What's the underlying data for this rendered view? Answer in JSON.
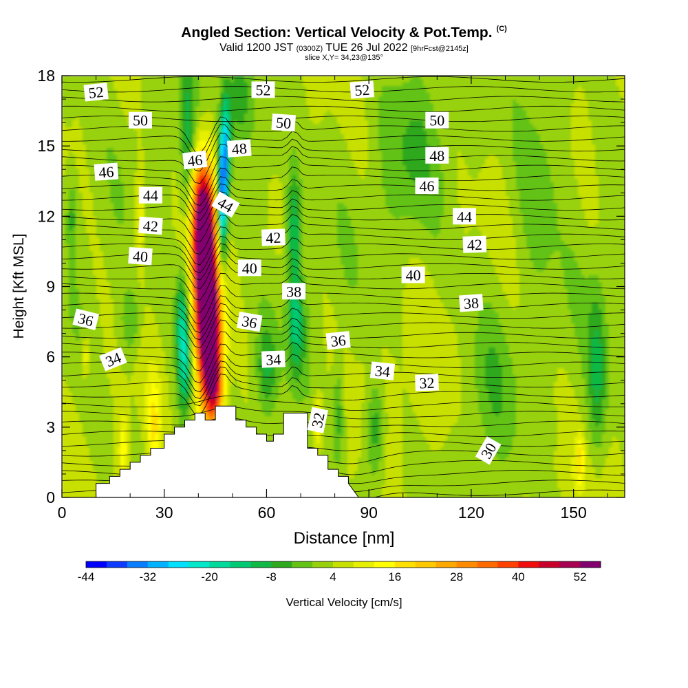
{
  "chart_data": {
    "type": "heatmap",
    "title": {
      "main": "Angled Section: Vertical Velocity & Pot.Temp.",
      "main_units": "(C)",
      "valid_prefix": "Valid 1200 JST",
      "valid_utc": "(0300Z)",
      "valid_date": "TUE 26 Jul 2022",
      "forecast": "[9hrFcst@2145z]",
      "slice": "slice X,Y= 34,23@135°"
    },
    "xlabel": "Distance [nm]",
    "ylabel": "Height [Kft MSL]",
    "xlim": [
      0,
      165
    ],
    "ylim": [
      0,
      18
    ],
    "xticks": [
      "0",
      "30",
      "60",
      "90",
      "120",
      "150"
    ],
    "yticks": [
      "0",
      "3",
      "6",
      "9",
      "12",
      "15",
      "18"
    ],
    "colorbar": {
      "label": "Vertical Velocity [cm/s]",
      "tick_labels": [
        "-44",
        "-32",
        "-20",
        "-8",
        "4",
        "16",
        "28",
        "40",
        "52"
      ],
      "levels": [
        -44,
        -40,
        -36,
        -32,
        -28,
        -24,
        -20,
        -16,
        -12,
        -8,
        -4,
        0,
        4,
        8,
        12,
        16,
        20,
        24,
        28,
        32,
        36,
        40,
        44,
        48,
        52,
        56
      ],
      "colors": [
        "#0000ff",
        "#0d3bff",
        "#0a7dff",
        "#00b2ff",
        "#00e0ff",
        "#00e8c8",
        "#00d99a",
        "#00c873",
        "#10b845",
        "#2ea81e",
        "#63c214",
        "#98d10c",
        "#c8e000",
        "#e6f000",
        "#ffff00",
        "#ffe000",
        "#ffc800",
        "#ffa800",
        "#ff8a00",
        "#ff6a00",
        "#ff4000",
        "#f00d0d",
        "#c8002a",
        "#a80050",
        "#82006e",
        "#62008a"
      ]
    },
    "terrain": {
      "x": [
        10,
        10,
        14,
        14,
        17,
        17,
        20,
        20,
        23,
        23,
        26,
        26,
        30,
        30,
        33,
        33,
        36,
        36,
        39,
        39,
        42,
        42,
        45,
        45,
        51,
        51,
        54,
        54,
        57,
        57,
        60,
        60,
        62,
        62,
        65,
        65,
        72,
        72,
        75,
        75,
        78,
        78,
        81,
        81,
        84,
        84,
        87
      ],
      "y": [
        0,
        0.6,
        0.6,
        0.9,
        0.9,
        1.2,
        1.2,
        1.5,
        1.5,
        1.8,
        1.8,
        2.1,
        2.1,
        2.7,
        2.7,
        3.0,
        3.0,
        3.3,
        3.3,
        3.6,
        3.6,
        3.3,
        3.3,
        3.9,
        3.9,
        3.3,
        3.3,
        3.0,
        3.0,
        2.7,
        2.7,
        2.4,
        2.4,
        2.7,
        2.7,
        3.6,
        3.6,
        2.1,
        2.1,
        1.8,
        1.8,
        1.2,
        1.2,
        0.9,
        0.9,
        0.6,
        0
      ]
    },
    "velocity_features": [
      {
        "x": 42,
        "y": 9.0,
        "sx": 2.4,
        "sy": 3.0,
        "value": 54
      },
      {
        "x": 44,
        "y": 6.5,
        "sx": 2.2,
        "sy": 2.2,
        "value": 38
      },
      {
        "x": 41,
        "y": 12.0,
        "sx": 2.4,
        "sy": 1.8,
        "value": 34
      },
      {
        "x": 45,
        "y": 4.6,
        "sx": 1.8,
        "sy": 1.0,
        "value": 20
      },
      {
        "x": 36,
        "y": 6.0,
        "sx": 1.5,
        "sy": 1.6,
        "value": -22
      },
      {
        "x": 35,
        "y": 8.0,
        "sx": 1.2,
        "sy": 1.2,
        "value": -10
      },
      {
        "x": 47,
        "y": 12.6,
        "sx": 1.0,
        "sy": 1.8,
        "value": -36
      },
      {
        "x": 48,
        "y": 15.0,
        "sx": 1.0,
        "sy": 1.5,
        "value": -24
      },
      {
        "x": 37,
        "y": 14.5,
        "sx": 1.5,
        "sy": 3.0,
        "value": -12
      },
      {
        "x": 52,
        "y": 17.0,
        "sx": 3.0,
        "sy": 1.5,
        "value": -9
      },
      {
        "x": 68,
        "y": 12.0,
        "sx": 1.5,
        "sy": 1.5,
        "value": -12
      },
      {
        "x": 68,
        "y": 9.0,
        "sx": 1.5,
        "sy": 2.0,
        "value": -9
      },
      {
        "x": 69,
        "y": 7.0,
        "sx": 1.8,
        "sy": 1.5,
        "value": -10
      },
      {
        "x": 60,
        "y": 5.5,
        "sx": 2.0,
        "sy": 1.2,
        "value": -10
      },
      {
        "x": 81,
        "y": 3.5,
        "sx": 1.2,
        "sy": 1.5,
        "value": -10
      },
      {
        "x": 92,
        "y": 3.0,
        "sx": 2.0,
        "sy": 1.5,
        "value": -12
      },
      {
        "x": 125,
        "y": 4.5,
        "sx": 5.0,
        "sy": 2.5,
        "value": -6
      },
      {
        "x": 157,
        "y": 5.5,
        "sx": 2.0,
        "sy": 2.5,
        "value": -12
      },
      {
        "x": 20,
        "y": 7.5,
        "sx": 2.0,
        "sy": 1.0,
        "value": -8
      },
      {
        "x": 100,
        "y": 5.0,
        "sx": 10.0,
        "sy": 2.0,
        "value": 2
      },
      {
        "x": 115,
        "y": 2.5,
        "sx": 10.0,
        "sy": 2.0,
        "value": 2
      },
      {
        "x": 150,
        "y": 1.0,
        "sx": 8.0,
        "sy": 1.0,
        "value": 2
      },
      {
        "x": 18,
        "y": 2.0,
        "sx": 1.0,
        "sy": 1.2,
        "value": 12
      },
      {
        "x": 27,
        "y": 3.0,
        "sx": 1.5,
        "sy": 1.5,
        "value": 12
      },
      {
        "x": 152,
        "y": 1.6,
        "sx": 0.8,
        "sy": 0.7,
        "value": 12
      },
      {
        "x": 23,
        "y": 12.0,
        "sx": 1.0,
        "sy": 1.5,
        "value": 10
      },
      {
        "x": 75,
        "y": 3.2,
        "sx": 1.0,
        "sy": 0.8,
        "value": 14
      },
      {
        "x": 7,
        "y": 6.0,
        "sx": 0.8,
        "sy": 0.6,
        "value": 10
      },
      {
        "x": 102,
        "y": 14.5,
        "sx": 6.0,
        "sy": 2.5,
        "value": -6
      },
      {
        "x": 140,
        "y": 14.0,
        "sx": 5.0,
        "sy": 3.0,
        "value": -6
      },
      {
        "x": 60,
        "y": 15.0,
        "sx": 4.0,
        "sy": 2.0,
        "value": -4
      },
      {
        "x": 3,
        "y": 12.0,
        "sx": 1.0,
        "sy": 1.0,
        "value": -8
      }
    ],
    "theta_labels": [
      {
        "text": "52",
        "x": 10,
        "y": 17.3,
        "rot": -6
      },
      {
        "text": "52",
        "x": 59,
        "y": 17.4,
        "rot": 0
      },
      {
        "text": "52",
        "x": 88,
        "y": 17.4,
        "rot": -4
      },
      {
        "text": "50",
        "x": 23,
        "y": 16.1,
        "rot": 0
      },
      {
        "text": "50",
        "x": 65,
        "y": 16.0,
        "rot": 4
      },
      {
        "text": "50",
        "x": 110,
        "y": 16.1,
        "rot": 0
      },
      {
        "text": "48",
        "x": 52,
        "y": 14.9,
        "rot": -4
      },
      {
        "text": "48",
        "x": 110,
        "y": 14.6,
        "rot": 0
      },
      {
        "text": "46",
        "x": 13,
        "y": 13.9,
        "rot": -4
      },
      {
        "text": "46",
        "x": 39,
        "y": 14.4,
        "rot": -6
      },
      {
        "text": "46",
        "x": 107,
        "y": 13.3,
        "rot": 0
      },
      {
        "text": "44",
        "x": 26,
        "y": 12.9,
        "rot": 0
      },
      {
        "text": "44",
        "x": 48,
        "y": 12.5,
        "rot": 30
      },
      {
        "text": "44",
        "x": 118,
        "y": 12.0,
        "rot": 0
      },
      {
        "text": "42",
        "x": 26,
        "y": 11.6,
        "rot": 4
      },
      {
        "text": "42",
        "x": 62,
        "y": 11.1,
        "rot": -2
      },
      {
        "text": "42",
        "x": 121,
        "y": 10.8,
        "rot": -2
      },
      {
        "text": "40",
        "x": 23,
        "y": 10.3,
        "rot": 4
      },
      {
        "text": "40",
        "x": 55,
        "y": 9.8,
        "rot": 0
      },
      {
        "text": "40",
        "x": 103,
        "y": 9.5,
        "rot": 0
      },
      {
        "text": "38",
        "x": 68,
        "y": 8.8,
        "rot": 0
      },
      {
        "text": "38",
        "x": 120,
        "y": 8.3,
        "rot": -4
      },
      {
        "text": "36",
        "x": 7,
        "y": 7.6,
        "rot": 14
      },
      {
        "text": "36",
        "x": 55,
        "y": 7.5,
        "rot": 10
      },
      {
        "text": "36",
        "x": 81,
        "y": 6.7,
        "rot": -6
      },
      {
        "text": "34",
        "x": 15,
        "y": 5.9,
        "rot": -22
      },
      {
        "text": "34",
        "x": 62,
        "y": 5.9,
        "rot": -2
      },
      {
        "text": "34",
        "x": 94,
        "y": 5.4,
        "rot": 6
      },
      {
        "text": "32",
        "x": 107,
        "y": 4.9,
        "rot": -2
      },
      {
        "text": "32",
        "x": 75,
        "y": 3.3,
        "rot": -78
      },
      {
        "text": "30",
        "x": 125,
        "y": 2.0,
        "rot": -60
      }
    ],
    "grid": false
  }
}
